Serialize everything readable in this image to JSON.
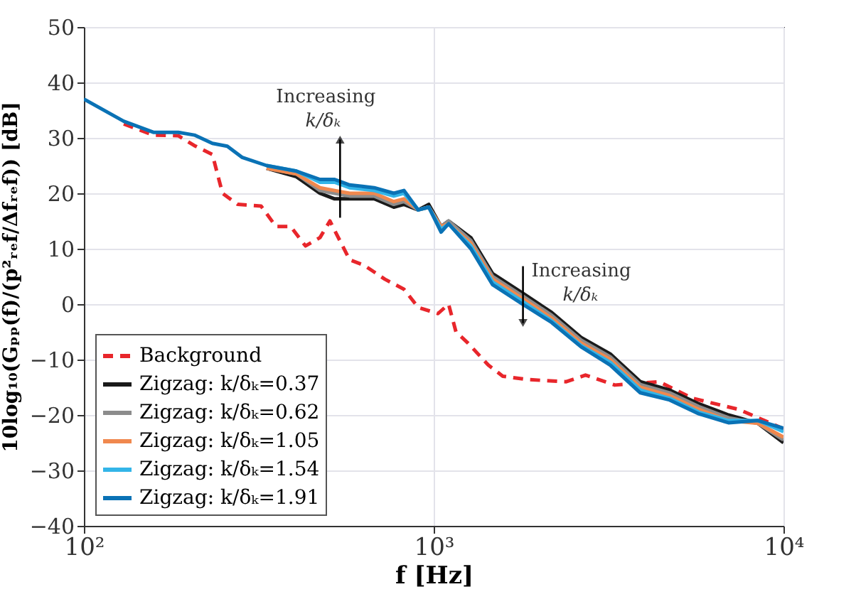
{
  "chart_data": {
    "type": "line",
    "xlabel": "f [Hz]",
    "ylabel": "10log₁₀(Gₚₚ(f)/(p²ᵣₑf/Δfᵣₑf)) [dB]",
    "log": "x",
    "xlim": [
      100,
      10000
    ],
    "xticks": [
      {
        "value": 100,
        "label": "10²"
      },
      {
        "value": 1000,
        "label": "10³"
      },
      {
        "value": 10000,
        "label": "10⁴"
      }
    ],
    "ylim": [
      -40,
      50
    ],
    "yticks": [
      -40,
      -30,
      -20,
      -10,
      0,
      10,
      20,
      30,
      40,
      50
    ],
    "grid": true,
    "legend": "bottom left",
    "annotations": [
      {
        "text": "Increasing k/δₖ",
        "x": 540,
        "y": 22
      },
      {
        "text": "Increasing k/δₖ",
        "x": 1800,
        "y": 3
      }
    ],
    "series": [
      {
        "name": "Background",
        "color": "#e8262b",
        "line_style": "dashed",
        "x": [
          130,
          158,
          186,
          207,
          233,
          249,
          275,
          321,
          354,
          390,
          430,
          473,
          505,
          575,
          633,
          725,
          822,
          903,
          1029,
          1103,
          1158,
          1252,
          1433,
          1576,
          1847,
          2393,
          2716,
          3296,
          4410,
          5500,
          7452,
          10000
        ],
        "values": [
          32.5,
          30.5,
          30.4,
          28.6,
          27,
          20,
          18,
          17.7,
          14,
          14,
          10.5,
          12,
          15,
          8,
          7,
          4.5,
          2.7,
          -0.6,
          -1.7,
          0,
          -5,
          -7,
          -11,
          -13,
          -13.6,
          -14,
          -12.8,
          -14.6,
          -14,
          -17,
          -19,
          -22.5
        ]
      },
      {
        "name": "Zigzag: k/δₖ=0.37",
        "color": "#1a1a1a",
        "x": [
          333,
          405,
          473,
          521,
          575,
          676,
          769,
          822,
          903,
          968,
          1050,
          1103,
          1277,
          1474,
          1794,
          2173,
          2639,
          3198,
          3897,
          4728,
          5734,
          6963,
          8452,
          10000
        ],
        "values": [
          24.5,
          23,
          20,
          19,
          19,
          19,
          17.5,
          18,
          17,
          18,
          14,
          15,
          12,
          5.5,
          2,
          -1.5,
          -6,
          -9,
          -14,
          -15.5,
          -18,
          -20,
          -21.5,
          -25
        ]
      },
      {
        "name": "Zigzag: k/δₖ=0.62",
        "color": "#8c8c8c",
        "x": [
          333,
          405,
          473,
          521,
          575,
          676,
          769,
          822,
          903,
          968,
          1050,
          1103,
          1277,
          1474,
          1794,
          2173,
          2639,
          3198,
          3897,
          4728,
          5734,
          6963,
          8452,
          10000
        ],
        "values": [
          24.5,
          23.5,
          20.5,
          20,
          19.5,
          19.5,
          18,
          18.5,
          17,
          17.5,
          14,
          15,
          11.5,
          5,
          1.5,
          -2,
          -6.5,
          -9.5,
          -14.5,
          -16,
          -18.5,
          -20.5,
          -21.5,
          -24.5
        ]
      },
      {
        "name": "Zigzag: k/δₖ=1.05",
        "color": "#f0884e",
        "x": [
          333,
          405,
          473,
          521,
          575,
          676,
          769,
          822,
          903,
          968,
          1050,
          1103,
          1277,
          1474,
          1794,
          2173,
          2639,
          3198,
          3897,
          4728,
          5734,
          6963,
          8452,
          10000
        ],
        "values": [
          24.5,
          23.5,
          21,
          20.5,
          20,
          20,
          18.5,
          19,
          17,
          17.5,
          14,
          14.5,
          11,
          4.5,
          1,
          -2.5,
          -7,
          -10,
          -15,
          -16.5,
          -19,
          -21,
          -21.5,
          -24
        ]
      },
      {
        "name": "Zigzag: k/δₖ=1.54",
        "color": "#33b5e8",
        "x": [
          333,
          405,
          473,
          521,
          575,
          676,
          769,
          822,
          903,
          968,
          1050,
          1103,
          1277,
          1474,
          1794,
          2173,
          2639,
          3198,
          3897,
          4728,
          5734,
          6963,
          8452,
          10000
        ],
        "values": [
          25,
          24,
          22,
          22,
          21,
          20.5,
          19.5,
          20,
          17,
          17.5,
          13.5,
          14.5,
          10.5,
          4,
          0.5,
          -3,
          -7.5,
          -10.5,
          -15.5,
          -17,
          -19.5,
          -21,
          -21,
          -23
        ]
      },
      {
        "name": "Zigzag: k/δₖ=1.91",
        "color": "#0a72b5",
        "x": [
          100,
          130,
          158,
          186,
          207,
          233,
          257,
          283,
          333,
          405,
          473,
          521,
          575,
          676,
          769,
          822,
          903,
          968,
          1050,
          1103,
          1277,
          1474,
          1794,
          2173,
          2639,
          3198,
          3897,
          4728,
          5734,
          6963,
          8452,
          10000
        ],
        "values": [
          37,
          33,
          31,
          31,
          30.5,
          29,
          28.5,
          26.5,
          25,
          24,
          22.5,
          22.5,
          21.5,
          21,
          20,
          20.5,
          17,
          17.5,
          13,
          14.5,
          10,
          3.5,
          0,
          -3.3,
          -7.7,
          -11,
          -16,
          -17.3,
          -19.8,
          -21.4,
          -21,
          -22.4
        ]
      }
    ]
  }
}
